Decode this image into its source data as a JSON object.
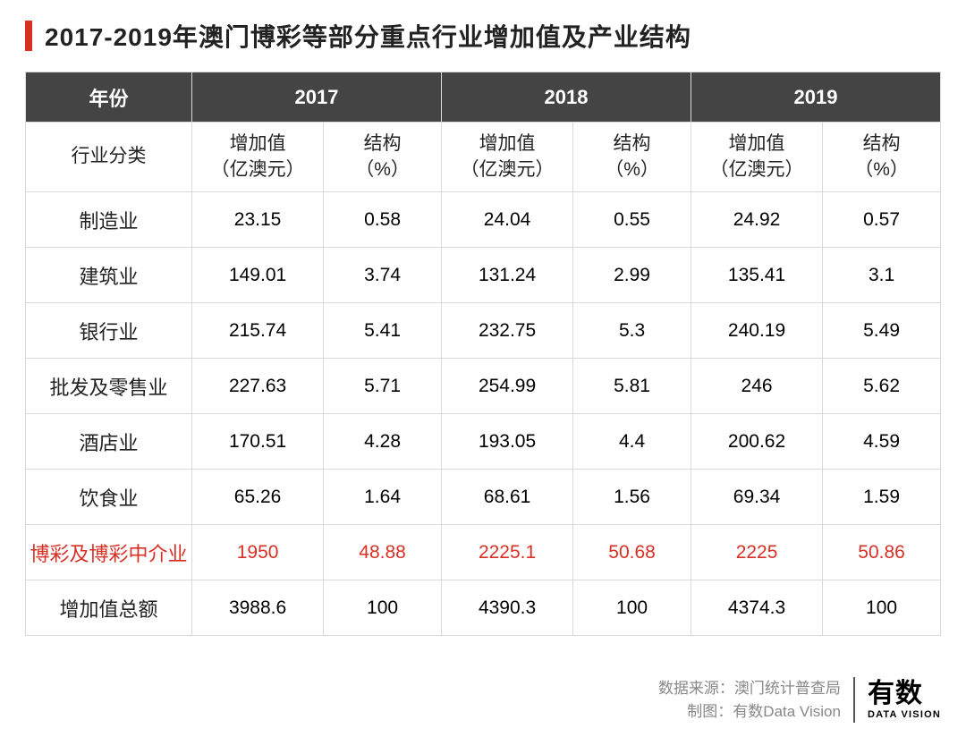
{
  "title": "2017-2019年澳门博彩等部分重点行业增加值及产业结构",
  "accent_color": "#d93025",
  "header_bg": "#444444",
  "header_fg": "#ffffff",
  "border_color": "#d9d9d9",
  "years_label": "年份",
  "years": [
    "2017",
    "2018",
    "2019"
  ],
  "category_label": "行业分类",
  "subheaders": {
    "value": "增加值\n（亿澳元）",
    "pct": "结构\n（%）"
  },
  "rows": [
    {
      "label": "制造业",
      "v": [
        "23.15",
        "0.58",
        "24.04",
        "0.55",
        "24.92",
        "0.57"
      ],
      "highlight": false
    },
    {
      "label": "建筑业",
      "v": [
        "149.01",
        "3.74",
        "131.24",
        "2.99",
        "135.41",
        "3.1"
      ],
      "highlight": false
    },
    {
      "label": "银行业",
      "v": [
        "215.74",
        "5.41",
        "232.75",
        "5.3",
        "240.19",
        "5.49"
      ],
      "highlight": false
    },
    {
      "label": "批发及零售业",
      "v": [
        "227.63",
        "5.71",
        "254.99",
        "5.81",
        "246",
        "5.62"
      ],
      "highlight": false
    },
    {
      "label": "酒店业",
      "v": [
        "170.51",
        "4.28",
        "193.05",
        "4.4",
        "200.62",
        "4.59"
      ],
      "highlight": false
    },
    {
      "label": "饮食业",
      "v": [
        "65.26",
        "1.64",
        "68.61",
        "1.56",
        "69.34",
        "1.59"
      ],
      "highlight": false
    },
    {
      "label": "博彩及博彩中介业",
      "v": [
        "1950",
        "48.88",
        "2225.1",
        "50.68",
        "2225",
        "50.86"
      ],
      "highlight": true
    },
    {
      "label": "增加值总额",
      "v": [
        "3988.6",
        "100",
        "4390.3",
        "100",
        "4374.3",
        "100"
      ],
      "highlight": false
    }
  ],
  "footer": {
    "source": "数据来源：澳门统计普查局",
    "credit": "制图：有数Data Vision",
    "logo_main": "有数",
    "logo_sub": "DATA VISION"
  }
}
